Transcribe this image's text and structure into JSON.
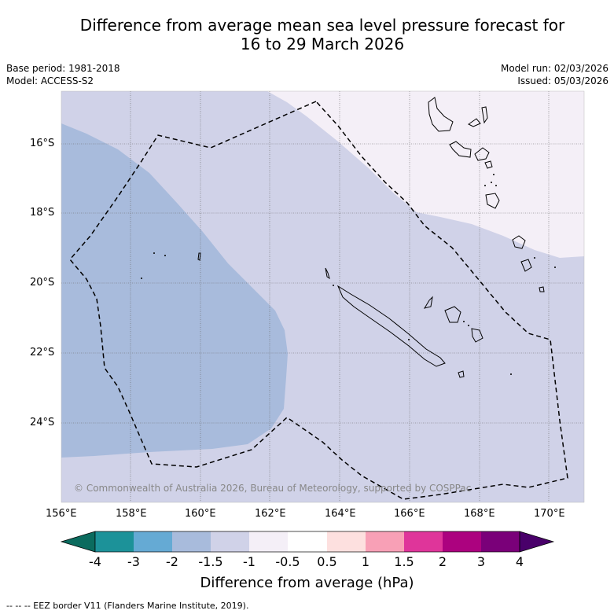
{
  "title_line1": "Difference from average mean sea level pressure forecast for",
  "title_line2": "16 to 29 March 2026",
  "base_period": "Base period: 1981-2018",
  "model": "Model: ACCESS-S2",
  "model_run": "Model run: 02/03/2026",
  "issued": "Issued: 05/03/2026",
  "lat_ticks": [
    "16°S",
    "18°S",
    "20°S",
    "22°S",
    "24°S"
  ],
  "lon_ticks": [
    "156°E",
    "158°E",
    "160°E",
    "162°E",
    "164°E",
    "166°E",
    "168°E",
    "170°E"
  ],
  "copyright": "© Commonwealth of Australia 2026, Bureau of Meteorology, supported by COSPPac",
  "colorbar": {
    "title": "Difference from average (hPa)",
    "labels": [
      "-4",
      "-3",
      "-2",
      "-1.5",
      "-1",
      "-0.5",
      "0.5",
      "1",
      "1.5",
      "2",
      "3",
      "4"
    ],
    "colors": [
      "#0b6b5e",
      "#1c9299",
      "#65aad4",
      "#a8bbdc",
      "#d0d2e8",
      "#f4eff7",
      "#ffffff",
      "#fde0df",
      "#f8a0b6",
      "#df359a",
      "#ac027f",
      "#7a0079",
      "#49006a"
    ]
  },
  "legend_text": "--  --  -- EEZ border V11 (Flanders Marine Institute, 2019).",
  "colors": {
    "bg": "#ffffff",
    "light": "#f4eff7",
    "mid": "#d0d2e8",
    "strong": "#a8bbdc"
  }
}
